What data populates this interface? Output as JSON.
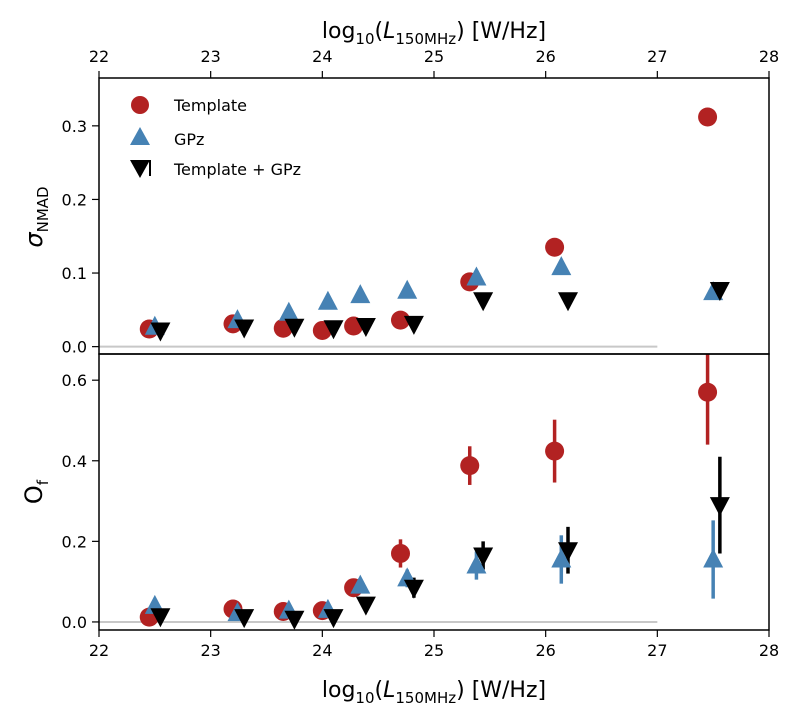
{
  "chart_data": {
    "type": "scatter",
    "x_label_top": "log",
    "x_label_sub": "10",
    "x_label_var": "L",
    "x_label_var_sub": "150MHz",
    "x_label_unit": "[W/Hz]",
    "x_range": [
      22,
      28
    ],
    "x_ticks": [
      "22",
      "23",
      "24",
      "25",
      "26",
      "27",
      "28"
    ],
    "legend": {
      "position": "top-left",
      "entries": [
        {
          "label": "Template",
          "color": "#b22222",
          "marker": "circle"
        },
        {
          "label": "GPz",
          "color": "#4682b4",
          "marker": "triangle-up"
        },
        {
          "label": "Template + GPz",
          "color": "#000000",
          "marker": "triangle-down"
        }
      ]
    },
    "panels": [
      {
        "id": "sigma",
        "ylabel_main": "σ",
        "ylabel_sub": "NMAD",
        "y_range": [
          -0.01,
          0.365
        ],
        "y_ticks": [
          "0.0",
          "0.1",
          "0.2",
          "0.3"
        ],
        "y_tick_values": [
          0.0,
          0.1,
          0.2,
          0.3
        ],
        "reference_line": {
          "y": 0.0,
          "x_end": 27.0
        },
        "series": [
          {
            "name": "Template",
            "marker": "circle",
            "color": "#b22222",
            "points": [
              {
                "x": 22.45,
                "y": 0.024
              },
              {
                "x": 23.2,
                "y": 0.031
              },
              {
                "x": 23.65,
                "y": 0.025
              },
              {
                "x": 24.0,
                "y": 0.022
              },
              {
                "x": 24.28,
                "y": 0.028
              },
              {
                "x": 24.7,
                "y": 0.036
              },
              {
                "x": 25.32,
                "y": 0.088
              },
              {
                "x": 26.08,
                "y": 0.135
              },
              {
                "x": 27.45,
                "y": 0.312
              }
            ]
          },
          {
            "name": "GPz",
            "marker": "triangle-up",
            "color": "#4682b4",
            "points": [
              {
                "x": 22.5,
                "y": 0.027
              },
              {
                "x": 23.24,
                "y": 0.036
              },
              {
                "x": 23.7,
                "y": 0.046
              },
              {
                "x": 24.05,
                "y": 0.061
              },
              {
                "x": 24.34,
                "y": 0.07
              },
              {
                "x": 24.76,
                "y": 0.076
              },
              {
                "x": 25.38,
                "y": 0.094
              },
              {
                "x": 26.14,
                "y": 0.108
              },
              {
                "x": 27.5,
                "y": 0.074
              }
            ]
          },
          {
            "name": "Template + GPz",
            "marker": "triangle-down",
            "color": "#000000",
            "points": [
              {
                "x": 22.55,
                "y": 0.022
              },
              {
                "x": 23.3,
                "y": 0.026
              },
              {
                "x": 23.75,
                "y": 0.027
              },
              {
                "x": 24.1,
                "y": 0.025
              },
              {
                "x": 24.39,
                "y": 0.028
              },
              {
                "x": 24.82,
                "y": 0.031
              },
              {
                "x": 25.44,
                "y": 0.063
              },
              {
                "x": 26.2,
                "y": 0.063
              },
              {
                "x": 27.56,
                "y": 0.077
              }
            ]
          }
        ]
      },
      {
        "id": "outlier",
        "ylabel_main": "O",
        "ylabel_sub": "f",
        "y_range": [
          -0.02,
          0.665
        ],
        "y_ticks": [
          "0.0",
          "0.2",
          "0.4",
          "0.6"
        ],
        "y_tick_values": [
          0.0,
          0.2,
          0.4,
          0.6
        ],
        "reference_line": {
          "y": 0.0,
          "x_end": 27.0
        },
        "series": [
          {
            "name": "Template",
            "marker": "circle",
            "color": "#b22222",
            "points": [
              {
                "x": 22.45,
                "y": 0.012,
                "err": 0.0
              },
              {
                "x": 23.2,
                "y": 0.032,
                "err": 0.0
              },
              {
                "x": 23.65,
                "y": 0.026,
                "err": 0.0
              },
              {
                "x": 24.0,
                "y": 0.028,
                "err": 0.0
              },
              {
                "x": 24.28,
                "y": 0.085,
                "err": 0.0
              },
              {
                "x": 24.7,
                "y": 0.17,
                "err": 0.035
              },
              {
                "x": 25.32,
                "y": 0.388,
                "err": 0.048
              },
              {
                "x": 26.08,
                "y": 0.424,
                "err": 0.078
              },
              {
                "x": 27.45,
                "y": 0.57,
                "err": 0.13
              }
            ]
          },
          {
            "name": "GPz",
            "marker": "triangle-up",
            "color": "#4682b4",
            "points": [
              {
                "x": 22.5,
                "y": 0.04,
                "err": 0.0
              },
              {
                "x": 23.24,
                "y": 0.022,
                "err": 0.0
              },
              {
                "x": 23.7,
                "y": 0.028,
                "err": 0.0
              },
              {
                "x": 24.05,
                "y": 0.03,
                "err": 0.0
              },
              {
                "x": 24.34,
                "y": 0.09,
                "err": 0.0
              },
              {
                "x": 24.76,
                "y": 0.108,
                "err": 0.022
              },
              {
                "x": 25.38,
                "y": 0.14,
                "err": 0.035
              },
              {
                "x": 26.14,
                "y": 0.155,
                "err": 0.06
              },
              {
                "x": 27.5,
                "y": 0.155,
                "err": 0.097
              }
            ]
          },
          {
            "name": "Template + GPz",
            "marker": "triangle-down",
            "color": "#000000",
            "points": [
              {
                "x": 22.55,
                "y": 0.014,
                "err": 0.0
              },
              {
                "x": 23.3,
                "y": 0.012,
                "err": 0.0
              },
              {
                "x": 23.75,
                "y": 0.008,
                "err": 0.0
              },
              {
                "x": 24.1,
                "y": 0.012,
                "err": 0.0
              },
              {
                "x": 24.39,
                "y": 0.043,
                "err": 0.0
              },
              {
                "x": 24.82,
                "y": 0.085,
                "err": 0.025
              },
              {
                "x": 25.44,
                "y": 0.165,
                "err": 0.035
              },
              {
                "x": 26.2,
                "y": 0.178,
                "err": 0.058
              },
              {
                "x": 27.56,
                "y": 0.29,
                "err": 0.12
              }
            ]
          }
        ]
      }
    ]
  }
}
